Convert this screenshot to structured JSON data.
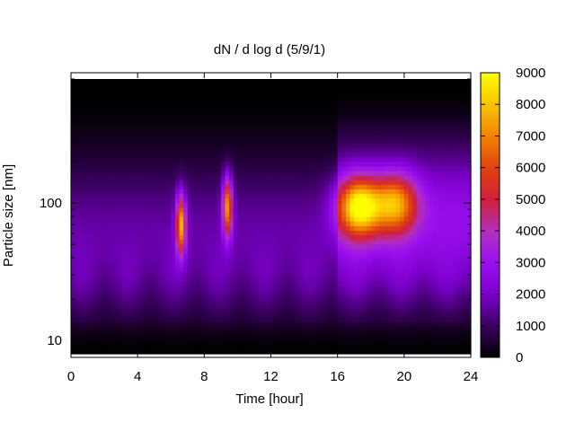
{
  "chart_data": {
    "type": "heatmap",
    "title": "dN / d log d (5/9/1)",
    "xlabel": "Time [hour]",
    "ylabel": "Particle size [nm]",
    "xlim": [
      0,
      24
    ],
    "ylim_nm": [
      8,
      800
    ],
    "y_scale": "log",
    "x_ticks": [
      0,
      4,
      8,
      12,
      16,
      20,
      24
    ],
    "x_tick_labels": [
      "0",
      "4",
      "8",
      "12",
      "16",
      "20",
      "24"
    ],
    "y_ticks": [
      10,
      100
    ],
    "y_tick_labels": [
      "10",
      "100"
    ],
    "colorbar": {
      "min": 0,
      "max": 9000,
      "ticks": [
        0,
        1000,
        2000,
        3000,
        4000,
        5000,
        6000,
        7000,
        8000,
        9000
      ],
      "tick_labels": [
        "0",
        "1000",
        "2000",
        "3000",
        "4000",
        "5000",
        "6000",
        "7000",
        "8000",
        "9000"
      ],
      "palette": [
        "#000000",
        "#3a005f",
        "#7a00c8",
        "#9a0ff0",
        "#b030c0",
        "#d02040",
        "#e04010",
        "#f08000",
        "#f8c000",
        "#ffff00"
      ]
    },
    "grid": false,
    "features": [
      {
        "hour": 6.6,
        "size_nm": 70,
        "peak": 8200
      },
      {
        "hour": 9.4,
        "size_nm": 95,
        "peak": 7800
      },
      {
        "hour": 17.3,
        "size_nm": 95,
        "peak": 9000
      },
      {
        "hour": 19.5,
        "size_nm": 100,
        "peak": 6800
      }
    ],
    "background_level": 1700
  }
}
